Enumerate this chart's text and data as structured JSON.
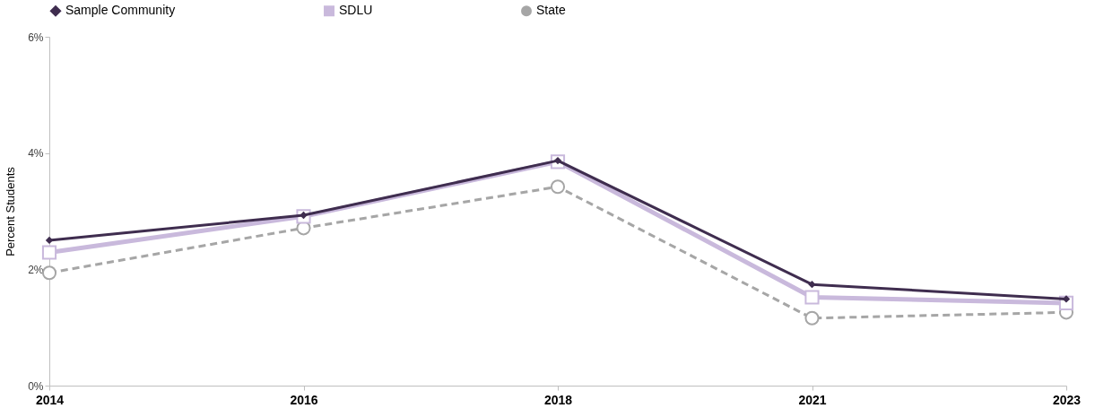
{
  "chart_data": {
    "type": "line",
    "ylabel": "Percent Students",
    "categories": [
      "2014",
      "2016",
      "2018",
      "2021",
      "2023"
    ],
    "series": [
      {
        "name": "Sample Community",
        "color": "#3f2d4f",
        "marker": "diamond",
        "line_style": "solid",
        "values": [
          2.5,
          2.93,
          3.87,
          1.74,
          1.49
        ]
      },
      {
        "name": "SDLU",
        "color": "#c9b9dc",
        "marker": "square",
        "line_style": "solid",
        "values": [
          2.29,
          2.91,
          3.85,
          1.52,
          1.42
        ]
      },
      {
        "name": "State",
        "color": "#a6a6a6",
        "marker": "circle",
        "line_style": "dashed",
        "values": [
          1.94,
          2.71,
          3.42,
          1.16,
          1.26
        ]
      }
    ],
    "ylim": [
      0,
      6
    ],
    "yticks": [
      {
        "value": 0,
        "label": "0%"
      },
      {
        "value": 2,
        "label": "2%"
      },
      {
        "value": 4,
        "label": "4%"
      },
      {
        "value": 6,
        "label": "6%"
      }
    ],
    "grid": false,
    "legend": "top"
  }
}
